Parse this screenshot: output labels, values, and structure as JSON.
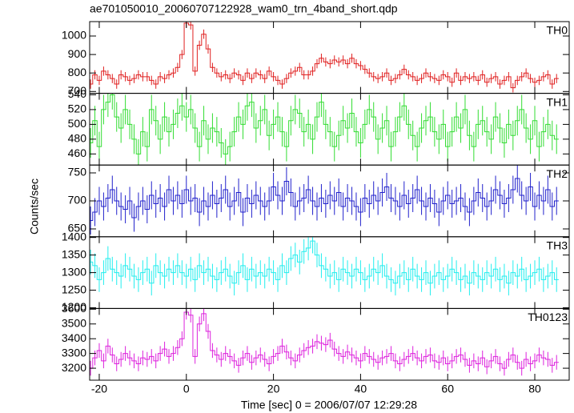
{
  "title": "ae701050010_20060707122928_wam0_trn_4band_short.qdp",
  "ylabel": "Counts/sec",
  "chart_data": {
    "type": "step",
    "xlabel": "Time [sec] 0 = 2006/07/07 12:29:28",
    "xlim": [
      -22.2,
      87.9
    ],
    "xticks": [
      -20,
      0,
      20,
      40,
      60,
      80
    ],
    "x": [
      -22,
      -21,
      -20,
      -19,
      -18,
      -17,
      -16,
      -15,
      -14,
      -13,
      -12,
      -11,
      -10,
      -9,
      -8,
      -7,
      -6,
      -5,
      -4,
      -3,
      -2,
      -1,
      0,
      1,
      2,
      3,
      4,
      5,
      6,
      7,
      8,
      9,
      10,
      11,
      12,
      13,
      14,
      15,
      16,
      17,
      18,
      19,
      20,
      21,
      22,
      23,
      24,
      25,
      26,
      27,
      28,
      29,
      30,
      31,
      32,
      33,
      34,
      35,
      36,
      37,
      38,
      39,
      40,
      41,
      42,
      43,
      44,
      45,
      46,
      47,
      48,
      49,
      50,
      51,
      52,
      53,
      54,
      55,
      56,
      57,
      58,
      59,
      60,
      61,
      62,
      63,
      64,
      65,
      66,
      67,
      68,
      69,
      70,
      71,
      72,
      73,
      74,
      75,
      76,
      77,
      78,
      79,
      80,
      81,
      82,
      83,
      84,
      85
    ],
    "series": [
      {
        "name": "TH0",
        "color": "#e02020",
        "error": 25,
        "ylim": [
          690,
          1078
        ],
        "yticks": [
          700,
          800,
          900,
          1000
        ],
        "values": [
          740,
          790,
          760,
          810,
          790,
          770,
          740,
          790,
          780,
          760,
          770,
          790,
          780,
          780,
          760,
          740,
          780,
          770,
          790,
          800,
          830,
          900,
          1070,
          1060,
          810,
          950,
          1010,
          930,
          830,
          800,
          780,
          790,
          770,
          800,
          790,
          760,
          800,
          770,
          800,
          790,
          770,
          810,
          780,
          760,
          740,
          770,
          800,
          810,
          830,
          790,
          790,
          810,
          850,
          880,
          860,
          850,
          870,
          860,
          870,
          850,
          880,
          850,
          840,
          820,
          800,
          780,
          770,
          780,
          800,
          760,
          770,
          790,
          820,
          790,
          780,
          760,
          770,
          800,
          780,
          770,
          760,
          790,
          780,
          750,
          800,
          760,
          780,
          770,
          780,
          760,
          790,
          750,
          770,
          780,
          740,
          760,
          780,
          720,
          760,
          780,
          800,
          770,
          750,
          760,
          780,
          790,
          740,
          770
        ]
      },
      {
        "name": "TH1",
        "color": "#33dd33",
        "error": 20,
        "ylim": [
          445,
          542
        ],
        "yticks": [
          460,
          480,
          500,
          520,
          540
        ],
        "values": [
          475,
          505,
          470,
          520,
          530,
          540,
          510,
          495,
          520,
          500,
          480,
          460,
          490,
          470,
          520,
          505,
          480,
          510,
          490,
          500,
          515,
          525,
          510,
          520,
          495,
          470,
          505,
          480,
          495,
          490,
          475,
          460,
          470,
          490,
          510,
          500,
          525,
          530,
          495,
          505,
          520,
          485,
          500,
          510,
          490,
          470,
          505,
          520,
          515,
          490,
          500,
          480,
          510,
          530,
          500,
          490,
          470,
          485,
          505,
          495,
          515,
          490,
          475,
          500,
          520,
          510,
          480,
          495,
          505,
          470,
          490,
          510,
          525,
          500,
          485,
          470,
          495,
          505,
          510,
          490,
          480,
          500,
          470,
          490,
          510,
          495,
          520,
          485,
          470,
          500,
          505,
          490,
          480,
          510,
          495,
          475,
          500,
          485,
          505,
          520,
          495,
          480,
          505,
          470,
          490,
          500,
          485,
          480
        ]
      },
      {
        "name": "TH2",
        "color": "#2222cc",
        "error": 25,
        "ylim": [
          636,
          764
        ],
        "yticks": [
          650,
          700,
          750
        ],
        "values": [
          665,
          680,
          700,
          690,
          705,
          720,
          700,
          690,
          685,
          700,
          670,
          690,
          700,
          685,
          710,
          695,
          705,
          690,
          720,
          700,
          710,
          695,
          720,
          700,
          705,
          680,
          700,
          690,
          710,
          695,
          705,
          720,
          690,
          700,
          715,
          680,
          705,
          695,
          710,
          700,
          690,
          700,
          725,
          710,
          700,
          735,
          715,
          690,
          700,
          705,
          720,
          700,
          690,
          705,
          695,
          710,
          700,
          715,
          690,
          705,
          700,
          690,
          680,
          705,
          695,
          710,
          700,
          715,
          725,
          705,
          700,
          690,
          710,
          695,
          705,
          720,
          700,
          690,
          705,
          695,
          680,
          700,
          710,
          695,
          700,
          705,
          690,
          680,
          700,
          715,
          705,
          690,
          700,
          720,
          710,
          695,
          705,
          720,
          740,
          710,
          700,
          725,
          690,
          710,
          700,
          720,
          690,
          700
        ]
      },
      {
        "name": "TH3",
        "color": "#22eeee",
        "error": 35,
        "ylim": [
          1198,
          1402
        ],
        "yticks": [
          1200,
          1250,
          1300,
          1350,
          1400
        ],
        "values": [
          1330,
          1320,
          1280,
          1300,
          1340,
          1310,
          1300,
          1290,
          1320,
          1310,
          1290,
          1280,
          1300,
          1310,
          1270,
          1320,
          1300,
          1290,
          1310,
          1300,
          1320,
          1300,
          1290,
          1310,
          1280,
          1320,
          1300,
          1310,
          1290,
          1280,
          1300,
          1310,
          1290,
          1270,
          1300,
          1320,
          1280,
          1310,
          1290,
          1300,
          1290,
          1310,
          1300,
          1280,
          1320,
          1300,
          1340,
          1350,
          1330,
          1360,
          1370,
          1390,
          1350,
          1320,
          1310,
          1290,
          1300,
          1280,
          1310,
          1300,
          1290,
          1310,
          1300,
          1280,
          1290,
          1310,
          1300,
          1320,
          1290,
          1280,
          1270,
          1290,
          1300,
          1280,
          1310,
          1290,
          1280,
          1300,
          1270,
          1290,
          1300,
          1280,
          1290,
          1310,
          1300,
          1280,
          1290,
          1270,
          1300,
          1290,
          1280,
          1300,
          1290,
          1310,
          1280,
          1290,
          1270,
          1300,
          1290,
          1310,
          1280,
          1290,
          1300,
          1310,
          1280,
          1290,
          1300,
          1280
        ]
      },
      {
        "name": "TH0123",
        "color": "#dd22dd",
        "error": 50,
        "ylim": [
          3119,
          3605
        ],
        "yticks": [
          3200,
          3300,
          3400,
          3500,
          3600
        ],
        "values": [
          3200,
          3270,
          3320,
          3250,
          3350,
          3290,
          3230,
          3260,
          3300,
          3270,
          3250,
          3230,
          3270,
          3260,
          3280,
          3250,
          3300,
          3330,
          3280,
          3300,
          3340,
          3400,
          3580,
          3560,
          3280,
          3500,
          3570,
          3450,
          3320,
          3290,
          3260,
          3300,
          3280,
          3250,
          3220,
          3270,
          3300,
          3240,
          3270,
          3290,
          3260,
          3230,
          3280,
          3300,
          3350,
          3310,
          3270,
          3250,
          3290,
          3320,
          3340,
          3350,
          3380,
          3370,
          3360,
          3390,
          3330,
          3300,
          3280,
          3310,
          3290,
          3270,
          3250,
          3300,
          3280,
          3260,
          3240,
          3270,
          3280,
          3300,
          3250,
          3230,
          3260,
          3280,
          3300,
          3270,
          3250,
          3280,
          3290,
          3250,
          3240,
          3270,
          3230,
          3250,
          3280,
          3290,
          3260,
          3220,
          3250,
          3230,
          3270,
          3210,
          3250,
          3280,
          3230,
          3200,
          3260,
          3290,
          3240,
          3200,
          3260,
          3230,
          3250,
          3290,
          3270,
          3260,
          3220,
          3240
        ]
      }
    ]
  }
}
